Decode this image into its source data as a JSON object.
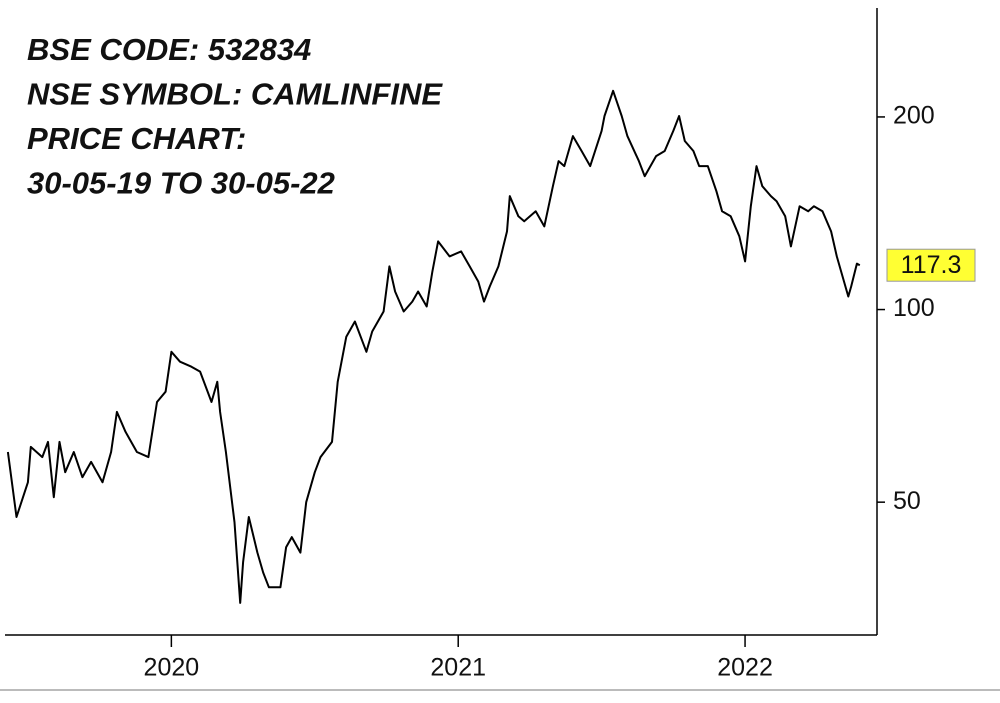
{
  "chart_data": {
    "type": "line",
    "annotations": [
      "BSE CODE: 532834",
      "NSE SYMBOL: CAMLINFINE",
      "PRICE CHART:",
      "30-05-19 TO 30-05-22"
    ],
    "color": "#000000",
    "log_scale": true,
    "xlim": [
      2019.42,
      2022.46
    ],
    "xticks": [
      2020,
      2021,
      2022
    ],
    "ylim": [
      31,
      296
    ],
    "yticks": [
      50,
      100,
      200
    ],
    "last_value": 117.3,
    "x": [
      2019.43,
      2019.46,
      2019.5,
      2019.51,
      2019.55,
      2019.57,
      2019.59,
      2019.61,
      2019.63,
      2019.66,
      2019.69,
      2019.72,
      2019.76,
      2019.79,
      2019.81,
      2019.84,
      2019.88,
      2019.92,
      2019.95,
      2019.98,
      2020.0,
      2020.03,
      2020.07,
      2020.1,
      2020.14,
      2020.16,
      2020.17,
      2020.19,
      2020.22,
      2020.24,
      2020.25,
      2020.27,
      2020.3,
      2020.32,
      2020.34,
      2020.38,
      2020.4,
      2020.42,
      2020.45,
      2020.47,
      2020.5,
      2020.52,
      2020.56,
      2020.58,
      2020.61,
      2020.64,
      2020.68,
      2020.7,
      2020.74,
      2020.76,
      2020.78,
      2020.81,
      2020.84,
      2020.86,
      2020.89,
      2020.91,
      2020.93,
      2020.97,
      2021.01,
      2021.04,
      2021.07,
      2021.09,
      2021.11,
      2021.14,
      2021.17,
      2021.18,
      2021.21,
      2021.23,
      2021.27,
      2021.3,
      2021.33,
      2021.35,
      2021.37,
      2021.4,
      2021.43,
      2021.46,
      2021.5,
      2021.51,
      2021.54,
      2021.57,
      2021.59,
      2021.63,
      2021.65,
      2021.69,
      2021.72,
      2021.75,
      2021.77,
      2021.79,
      2021.82,
      2021.84,
      2021.87,
      2021.9,
      2021.92,
      2021.95,
      2021.98,
      2022.0,
      2022.02,
      2022.04,
      2022.06,
      2022.09,
      2022.11,
      2022.14,
      2022.16,
      2022.19,
      2022.22,
      2022.24,
      2022.27,
      2022.3,
      2022.32,
      2022.34,
      2022.36,
      2022.37,
      2022.39,
      2022.4
    ],
    "values": [
      59.9,
      47.4,
      53.7,
      61.0,
      58.8,
      62.1,
      50.9,
      62.1,
      55.7,
      59.9,
      54.7,
      57.8,
      53.7,
      59.9,
      69.2,
      64.4,
      59.9,
      58.8,
      71.7,
      74.4,
      85.9,
      82.9,
      81.4,
      80.0,
      71.7,
      77.1,
      69.2,
      59.9,
      46.5,
      34.8,
      40.3,
      47.4,
      41.7,
      38.8,
      36.8,
      36.8,
      42.5,
      44.1,
      41.7,
      50.0,
      55.7,
      58.8,
      62.1,
      77.1,
      90.7,
      95.8,
      85.9,
      92.4,
      99.3,
      116.8,
      106.7,
      99.3,
      102.9,
      106.7,
      101.1,
      114.7,
      127.8,
      121.1,
      123.3,
      116.8,
      110.6,
      102.9,
      108.7,
      116.8,
      132.5,
      150.4,
      139.9,
      137.4,
      142.4,
      134.9,
      155.9,
      170.6,
      167.6,
      186.7,
      176.9,
      167.6,
      190.2,
      200.7,
      219.7,
      200.7,
      186.7,
      170.6,
      161.6,
      173.7,
      176.9,
      190.2,
      200.7,
      183.4,
      176.9,
      167.6,
      167.6,
      153.1,
      142.4,
      139.9,
      130.2,
      118.9,
      145.0,
      167.6,
      155.9,
      150.4,
      147.7,
      139.9,
      125.5,
      145.0,
      142.4,
      145.0,
      142.4,
      132.5,
      121.1,
      112.6,
      104.8,
      108.7,
      118.0,
      117.3
    ]
  }
}
